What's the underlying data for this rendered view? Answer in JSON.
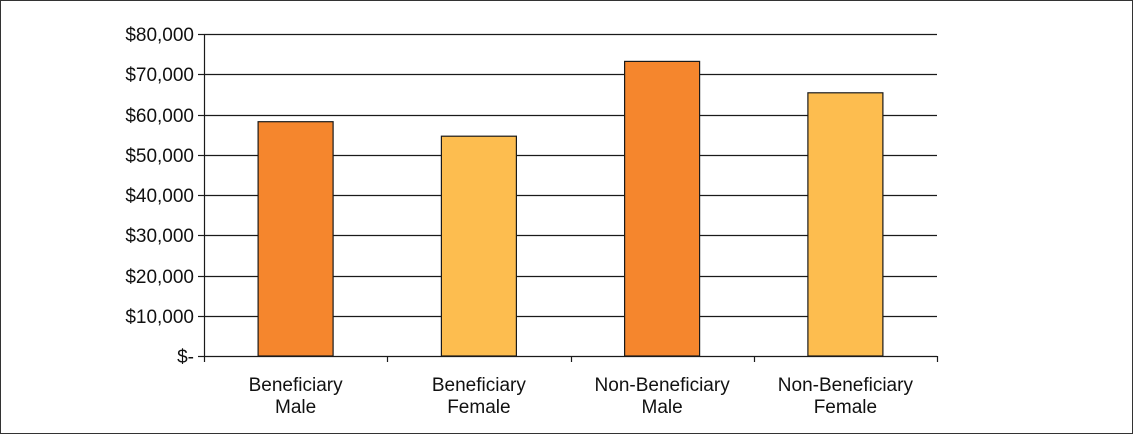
{
  "chart_data": {
    "type": "bar",
    "categories": [
      [
        "Beneficiary",
        "Male"
      ],
      [
        "Beneficiary",
        "Female"
      ],
      [
        "Non-Beneficiary",
        "Male"
      ],
      [
        "Non-Beneficiary",
        "Female"
      ]
    ],
    "values": [
      58200,
      54600,
      73200,
      65400
    ],
    "colors": [
      "#f5862d",
      "#fdbd4f",
      "#f5862d",
      "#fdbd4f"
    ],
    "ylim": [
      0,
      80000
    ],
    "yticks": [
      0,
      10000,
      20000,
      30000,
      40000,
      50000,
      60000,
      70000,
      80000
    ],
    "ytick_labels": [
      "$-",
      "$10,000",
      "$20,000",
      "$30,000",
      "$40,000",
      "$50,000",
      "$60,000",
      "$70,000",
      "$80,000"
    ],
    "grid": true,
    "legend": false,
    "title": "",
    "xlabel": "",
    "ylabel": ""
  }
}
